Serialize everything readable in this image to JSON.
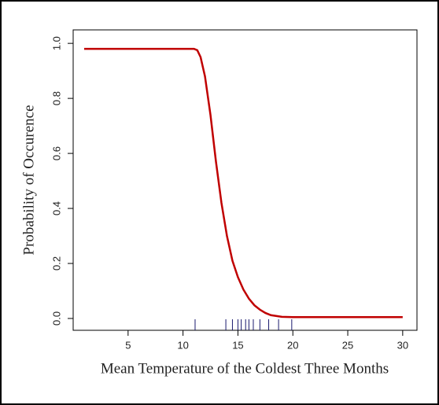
{
  "chart_data": {
    "type": "line",
    "x_label": "Mean Temperature of the Coldest Three Months",
    "y_label": "Probability of Occurence",
    "x": [
      1,
      2,
      3,
      4,
      5,
      6,
      7,
      8,
      9,
      10,
      11,
      11.3,
      11.6,
      12,
      12.5,
      13,
      13.5,
      14,
      14.5,
      15,
      15.5,
      16,
      16.5,
      17,
      17.5,
      18,
      19,
      20,
      25,
      30
    ],
    "series": [
      {
        "color": "#c00000",
        "values": [
          0.98,
          0.98,
          0.98,
          0.98,
          0.98,
          0.98,
          0.98,
          0.98,
          0.98,
          0.98,
          0.98,
          0.975,
          0.95,
          0.88,
          0.74,
          0.57,
          0.42,
          0.3,
          0.21,
          0.15,
          0.105,
          0.072,
          0.048,
          0.032,
          0.02,
          0.012,
          0.006,
          0.005,
          0.005,
          0.005
        ]
      }
    ],
    "rug": [
      11.1,
      13.9,
      14.5,
      15.0,
      15.3,
      15.7,
      16.0,
      16.4,
      17.0,
      17.8,
      18.7,
      19.9
    ],
    "rug_color": "#1a1a6e",
    "xlim": [
      0,
      31.3
    ],
    "xticks": [
      5,
      10,
      15,
      20,
      25,
      30
    ],
    "ylim": [
      -0.043,
      1.049
    ],
    "yticks": [
      {
        "value": 0,
        "label": "0.0"
      },
      0.2,
      0.4,
      0.6,
      0.8,
      {
        "value": 1,
        "label": "1.0"
      }
    ]
  }
}
